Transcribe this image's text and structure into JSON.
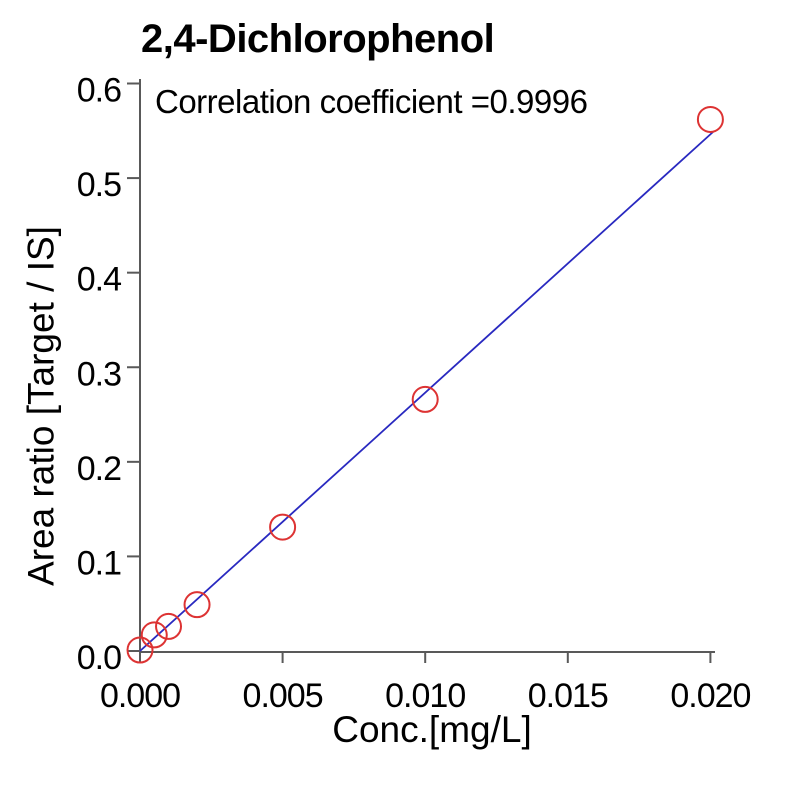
{
  "chart_data": {
    "type": "scatter",
    "title": "2,4-Dichlorophenol",
    "annotation": "Correlation coefficient =0.9996",
    "xlabel": "Conc.[mg/L]",
    "ylabel": "Area ratio [Target / IS]",
    "xlim": [
      0.0,
      0.02
    ],
    "ylim": [
      0.0,
      0.6
    ],
    "grid": false,
    "legend": "none",
    "x_ticks": [
      0.0,
      0.005,
      0.01,
      0.015,
      0.02
    ],
    "x_tick_labels": [
      "0.000",
      "0.005",
      "0.010",
      "0.015",
      "0.020"
    ],
    "y_ticks": [
      0.0,
      0.1,
      0.2,
      0.3,
      0.4,
      0.5,
      0.6
    ],
    "y_tick_labels": [
      "0.0",
      "0.1",
      "0.2",
      "0.3",
      "0.4",
      "0.5",
      "0.6"
    ],
    "series": [
      {
        "name": "calibration-points",
        "type": "scatter",
        "marker": "open-circle",
        "color": "#dd3333",
        "points": [
          {
            "conc": 0.0,
            "ratio": 0.001
          },
          {
            "conc": 0.0005,
            "ratio": 0.017
          },
          {
            "conc": 0.001,
            "ratio": 0.026
          },
          {
            "conc": 0.002,
            "ratio": 0.049
          },
          {
            "conc": 0.005,
            "ratio": 0.131
          },
          {
            "conc": 0.01,
            "ratio": 0.266
          },
          {
            "conc": 0.02,
            "ratio": 0.562
          }
        ]
      },
      {
        "name": "fit-line",
        "type": "line",
        "color": "#2929c0",
        "points": [
          {
            "conc": 0.0,
            "ratio": 0.0
          },
          {
            "conc": 0.0201,
            "ratio": 0.549
          }
        ]
      }
    ],
    "correlation_coefficient": "0.9996"
  },
  "colors": {
    "marker": "#dd3333",
    "fit_line": "#2929c0",
    "axis": "#595959",
    "text": "#000000",
    "background": "#ffffff"
  }
}
